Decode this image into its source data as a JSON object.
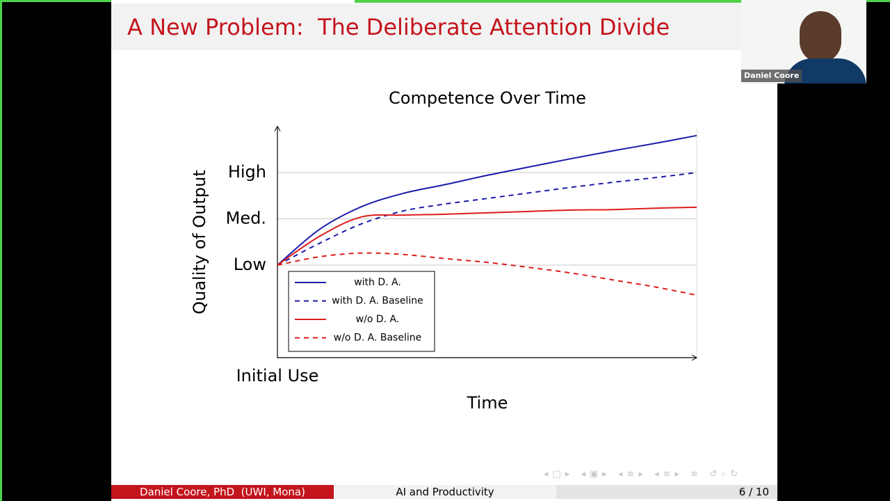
{
  "slide": {
    "title": "A New Problem:  The Deliberate Attention Divide"
  },
  "participant": {
    "name": "Daniel Coore"
  },
  "chart_data": {
    "type": "line",
    "title": "Competence Over Time",
    "x_label": "Time",
    "y_label": "Quality of Output",
    "x": [
      0,
      1,
      2,
      3,
      4,
      5,
      6,
      7,
      8,
      9,
      10
    ],
    "xlim": [
      0,
      10
    ],
    "xticks": [
      {
        "value": 0,
        "label": "Initial Use"
      }
    ],
    "ylim": [
      -1,
      4
    ],
    "yticks": [
      {
        "value": 1,
        "label": "Low"
      },
      {
        "value": 2,
        "label": "Med."
      },
      {
        "value": 3,
        "label": "High"
      }
    ],
    "grid": true,
    "legend": "lower left",
    "series": [
      {
        "name": "with D. A.",
        "color": "#1a1aaa",
        "line_style": "solid",
        "values": [
          1,
          1.77,
          2.26,
          2.55,
          2.74,
          2.94,
          3.12,
          3.3,
          3.47,
          3.63,
          3.8
        ]
      },
      {
        "name": "with D. A. Baseline",
        "color": "#1a1aaa",
        "line_style": "dashed",
        "values": [
          1,
          1.47,
          1.89,
          2.17,
          2.32,
          2.44,
          2.56,
          2.68,
          2.79,
          2.89,
          3.0
        ]
      },
      {
        "name": "w/o D. A.",
        "color": "#dd1c1c",
        "line_style": "solid",
        "values": [
          1,
          1.62,
          2.04,
          2.08,
          2.1,
          2.13,
          2.16,
          2.19,
          2.2,
          2.23,
          2.25
        ]
      },
      {
        "name": "w/o D. A. Baseline",
        "color": "#dd1c1c",
        "line_style": "dashed",
        "values": [
          1,
          1.18,
          1.26,
          1.23,
          1.14,
          1.06,
          0.95,
          0.83,
          0.68,
          0.53,
          0.35
        ]
      }
    ]
  },
  "footer": {
    "author": "Daniel Coore, PhD  (UWI, Mona)",
    "talk": "AI and Productivity",
    "page": "6 / 10"
  }
}
